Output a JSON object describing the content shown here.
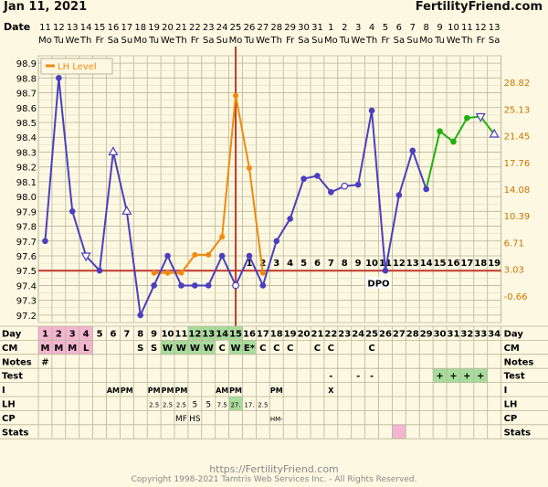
{
  "header": {
    "date": "Jan 11, 2021",
    "site": "FertilityFriend.com"
  },
  "footer": {
    "url": "https://FertilityFriend.com",
    "copyright": "Copyright 1998-2021 Tamtris Web Services Inc. - All Rights Reserved."
  },
  "colors": {
    "background": "#fdf8e1",
    "grid": "#b9b59a",
    "temp_line": "#4a3fbf",
    "lh_line": "#ef8a0d",
    "post_line": "#1fb10f",
    "coverline": "#c0392b",
    "ovulation_line": "#c0392b",
    "pink_cell": "#f3b5cf",
    "green_cell": "#a8dc9c"
  },
  "chart_data": {
    "type": "line",
    "title": "",
    "x": {
      "date_label": "Date",
      "dates": [
        "11",
        "12",
        "13",
        "14",
        "15",
        "16",
        "17",
        "18",
        "19",
        "20",
        "21",
        "22",
        "23",
        "24",
        "25",
        "26",
        "27",
        "28",
        "29",
        "30",
        "31",
        "1",
        "2",
        "3",
        "4",
        "5",
        "6",
        "7",
        "8",
        "9",
        "10",
        "11",
        "12",
        "13"
      ],
      "weekdays": [
        "Mo",
        "Tu",
        "We",
        "Th",
        "Fr",
        "Sa",
        "Su",
        "Mo",
        "Tu",
        "We",
        "Th",
        "Fr",
        "Sa",
        "Su",
        "Mo",
        "Tu",
        "We",
        "Th",
        "Fr",
        "Sa",
        "Su",
        "Mo",
        "Tu",
        "We",
        "Th",
        "Fr",
        "Sa",
        "Su",
        "Mo",
        "Tu",
        "We",
        "Th",
        "Fr",
        "Sa"
      ],
      "day_label": "Day",
      "cycle_days": [
        "1",
        "2",
        "3",
        "4",
        "5",
        "6",
        "7",
        "8",
        "9",
        "10",
        "11",
        "12",
        "13",
        "14",
        "15",
        "16",
        "17",
        "18",
        "19",
        "20",
        "21",
        "22",
        "23",
        "24",
        "25",
        "26",
        "27",
        "28",
        "29",
        "30",
        "31",
        "32",
        "33",
        "34"
      ]
    },
    "y_left": {
      "ticks": [
        "98.9",
        "98.8",
        "98.7",
        "98.6",
        "98.5",
        "98.4",
        "98.3",
        "98.2",
        "98.1",
        "98.0",
        "97.9",
        "97.8",
        "97.7",
        "97.6",
        "97.5",
        "97.4",
        "97.3",
        "97.2"
      ],
      "range": [
        97.15,
        98.95
      ]
    },
    "y_right": {
      "ticks": [
        "28.82",
        "25.13",
        "21.45",
        "17.76",
        "14.08",
        "10.39",
        "6.71",
        "3.03",
        "-0.66"
      ]
    },
    "legend": {
      "label": "LH Level",
      "position": "top-left"
    },
    "temperature": {
      "series": [
        {
          "day": 1,
          "value": 97.7,
          "style": "filled"
        },
        {
          "day": 2,
          "value": 98.8,
          "style": "filled"
        },
        {
          "day": 3,
          "value": 97.9,
          "style": "filled"
        },
        {
          "day": 4,
          "value": 97.6,
          "style": "triangle-down"
        },
        {
          "day": 5,
          "value": 97.5,
          "style": "filled"
        },
        {
          "day": 6,
          "value": 98.3,
          "style": "triangle-up"
        },
        {
          "day": 7,
          "value": 97.9,
          "style": "triangle-up"
        },
        {
          "day": 8,
          "value": 97.2,
          "style": "filled"
        },
        {
          "day": 9,
          "value": 97.4,
          "style": "filled"
        },
        {
          "day": 10,
          "value": 97.6,
          "style": "filled"
        },
        {
          "day": 11,
          "value": 97.4,
          "style": "filled"
        },
        {
          "day": 12,
          "value": 97.4,
          "style": "filled"
        },
        {
          "day": 13,
          "value": 97.4,
          "style": "filled"
        },
        {
          "day": 14,
          "value": 97.6,
          "style": "filled"
        },
        {
          "day": 15,
          "value": 97.4,
          "style": "open"
        },
        {
          "day": 16,
          "value": 97.6,
          "style": "filled"
        },
        {
          "day": 17,
          "value": 97.4,
          "style": "filled"
        },
        {
          "day": 18,
          "value": 97.7,
          "style": "filled"
        },
        {
          "day": 19,
          "value": 97.85,
          "style": "filled"
        },
        {
          "day": 20,
          "value": 98.12,
          "style": "filled"
        },
        {
          "day": 21,
          "value": 98.14,
          "style": "filled"
        },
        {
          "day": 22,
          "value": 98.03,
          "style": "filled"
        },
        {
          "day": 23,
          "value": 98.07,
          "style": "open"
        },
        {
          "day": 24,
          "value": 98.08,
          "style": "filled"
        },
        {
          "day": 25,
          "value": 98.58,
          "style": "filled"
        },
        {
          "day": 26,
          "value": 97.5,
          "style": "filled"
        },
        {
          "day": 27,
          "value": 98.01,
          "style": "filled"
        },
        {
          "day": 28,
          "value": 98.31,
          "style": "filled"
        },
        {
          "day": 29,
          "value": 98.05,
          "style": "filled"
        }
      ],
      "projected": [
        {
          "day": 29,
          "value": 98.05,
          "style": "none"
        },
        {
          "day": 30,
          "value": 98.44,
          "style": "filled"
        },
        {
          "day": 31,
          "value": 98.37,
          "style": "filled"
        },
        {
          "day": 32,
          "value": 98.53,
          "style": "filled"
        },
        {
          "day": 33,
          "value": 98.54,
          "style": "triangle-down"
        },
        {
          "day": 34,
          "value": 98.42,
          "style": "triangle-up"
        }
      ]
    },
    "lh": {
      "series": [
        {
          "day": 9,
          "value": 2.5
        },
        {
          "day": 10,
          "value": 2.5
        },
        {
          "day": 11,
          "value": 2.5
        },
        {
          "day": 12,
          "value": 5
        },
        {
          "day": 13,
          "value": 5
        },
        {
          "day": 14,
          "value": 7.5
        },
        {
          "day": 15,
          "value": 27
        },
        {
          "day": 16,
          "value": 17
        },
        {
          "day": 17,
          "value": 2.5
        }
      ]
    },
    "coverline": 97.5,
    "ovulation_day": 15,
    "dpo": {
      "label": "DPO",
      "numbers": [
        "1",
        "2",
        "3",
        "4",
        "5",
        "6",
        "7",
        "8",
        "9",
        "10",
        "11",
        "12",
        "13",
        "14",
        "15",
        "16",
        "17",
        "18",
        "19"
      ]
    },
    "rows": [
      {
        "label": "Day",
        "cells": [
          "1",
          "2",
          "3",
          "4",
          "5",
          "6",
          "7",
          "8",
          "9",
          "10",
          "11",
          "12",
          "13",
          "14",
          "15",
          "16",
          "17",
          "18",
          "19",
          "20",
          "21",
          "22",
          "23",
          "24",
          "25",
          "26",
          "27",
          "28",
          "29",
          "30",
          "31",
          "32",
          "33",
          "34"
        ],
        "highlight": {
          "1": "pink",
          "2": "pink",
          "3": "pink",
          "4": "pink",
          "12": "green",
          "13": "green",
          "14": "green",
          "15": "green"
        }
      },
      {
        "label": "CM",
        "cells": [
          "M",
          "M",
          "M",
          "L",
          "",
          "",
          "",
          "S",
          "S",
          "W",
          "W",
          "W",
          "W",
          "C",
          "W",
          "E*",
          "C",
          "C",
          "C",
          "",
          "C",
          "C",
          "",
          "",
          "C",
          "",
          "",
          "",
          "",
          "",
          "",
          "",
          "",
          ""
        ],
        "highlight": {
          "1": "pink",
          "2": "pink",
          "3": "pink",
          "4": "pink",
          "10": "green",
          "11": "green",
          "12": "green",
          "13": "green",
          "15": "green",
          "16": "green"
        }
      },
      {
        "label": "Notes",
        "cells": [
          "#",
          "",
          "",
          "",
          "",
          "",
          "",
          "",
          "",
          "",
          "",
          "",
          "",
          "",
          "",
          "",
          "",
          "",
          "",
          "",
          "",
          "",
          "",
          "",
          "",
          "",
          "",
          "",
          "",
          "",
          "",
          "",
          "",
          ""
        ]
      },
      {
        "label": "Test",
        "cells": [
          "",
          "",
          "",
          "",
          "",
          "",
          "",
          "",
          "",
          "",
          "",
          "",
          "",
          "",
          "",
          "",
          "",
          "",
          "",
          "",
          "",
          "-",
          "",
          "-",
          "-",
          "",
          "",
          "",
          "",
          "+",
          "+",
          "+",
          "+",
          ""
        ],
        "highlight": {
          "30": "green",
          "31": "green",
          "32": "green",
          "33": "green"
        }
      },
      {
        "label": "I",
        "cells": [
          "",
          "",
          "",
          "",
          "",
          "AM",
          "PM",
          "",
          "PM",
          "PM",
          "PM",
          "",
          "",
          "AM",
          "PM",
          "",
          "",
          "PM",
          "",
          "",
          "",
          "X",
          "",
          "",
          "",
          "",
          "",
          "",
          "",
          "",
          "",
          "",
          "",
          ""
        ]
      },
      {
        "label": "LH",
        "cells": [
          "",
          "",
          "",
          "",
          "",
          "",
          "",
          "",
          "2.5",
          "2.5",
          "2.5",
          "5",
          "5",
          "7.5",
          "27.",
          "17.",
          "2.5",
          "",
          "",
          "",
          "",
          "",
          "",
          "",
          "",
          "",
          "",
          "",
          "",
          "",
          "",
          "",
          "",
          ""
        ],
        "highlight": {
          "15": "green"
        }
      },
      {
        "label": "CP",
        "cells": [
          "",
          "",
          "",
          "",
          "",
          "",
          "",
          "",
          "",
          "",
          "MF",
          "HS",
          "",
          "",
          "",
          "",
          "",
          "HM-",
          "",
          "",
          "",
          "",
          "",
          "",
          "",
          "",
          "",
          "",
          "",
          "",
          "",
          "",
          "",
          ""
        ]
      },
      {
        "label": "Stats",
        "cells": [
          "",
          "",
          "",
          "",
          "",
          "",
          "",
          "",
          "",
          "",
          "",
          "",
          "",
          "",
          "",
          "",
          "",
          "",
          "",
          "",
          "",
          "",
          "",
          "",
          "",
          "",
          "",
          "",
          "",
          "",
          "",
          "",
          "",
          ""
        ],
        "highlight": {
          "27": "pink"
        }
      }
    ]
  }
}
